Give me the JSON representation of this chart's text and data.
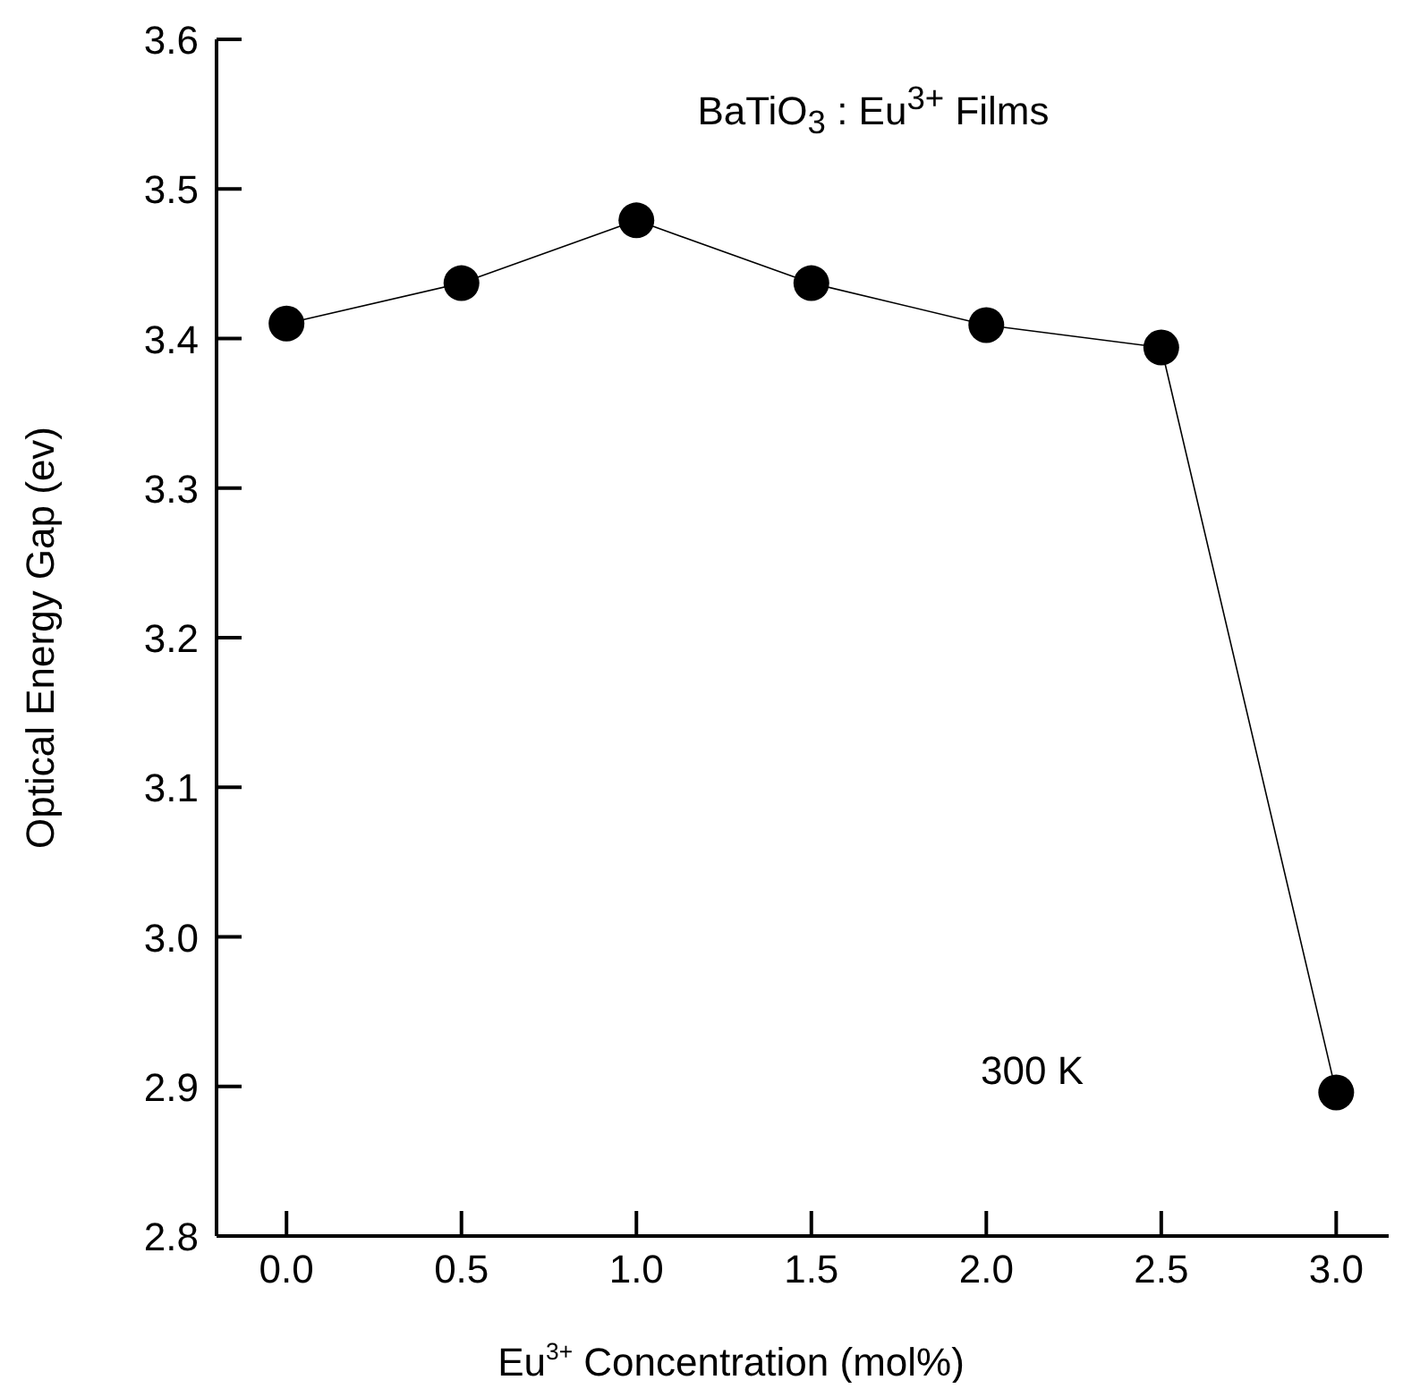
{
  "chart_data": {
    "type": "line",
    "title": "BaTiO$_{3}$ : Eu$^{3+}$ Films",
    "xlabel": "Eu$^{3+}$ Concentration (mol%)",
    "ylabel": "Optical Energy Gap (ev)",
    "annotations": [
      "300 K"
    ],
    "x": [
      0,
      0.5,
      1,
      1.5,
      2,
      2.5,
      3
    ],
    "series": [
      {
        "color": "#000000",
        "values": [
          3.41,
          3.437,
          3.479,
          3.437,
          3.409,
          3.394,
          2.896
        ]
      }
    ],
    "xlim": [
      -0.2,
      3.15
    ],
    "xticks": [
      {
        "value": 0,
        "label": "0.0"
      },
      0.5,
      {
        "value": 1,
        "label": "1.0"
      },
      1.5,
      {
        "value": 2,
        "label": "2.0"
      },
      2.5,
      {
        "value": 3,
        "label": "3.0"
      }
    ],
    "ylim": [
      2.8,
      3.6
    ],
    "yticks": [
      2.8,
      2.9,
      {
        "value": 3,
        "label": "3.0"
      },
      3.1,
      3.2,
      3.3,
      3.4,
      3.5,
      3.6
    ],
    "marker": "circle",
    "line_style": "solid",
    "grid": false,
    "legend": false
  }
}
